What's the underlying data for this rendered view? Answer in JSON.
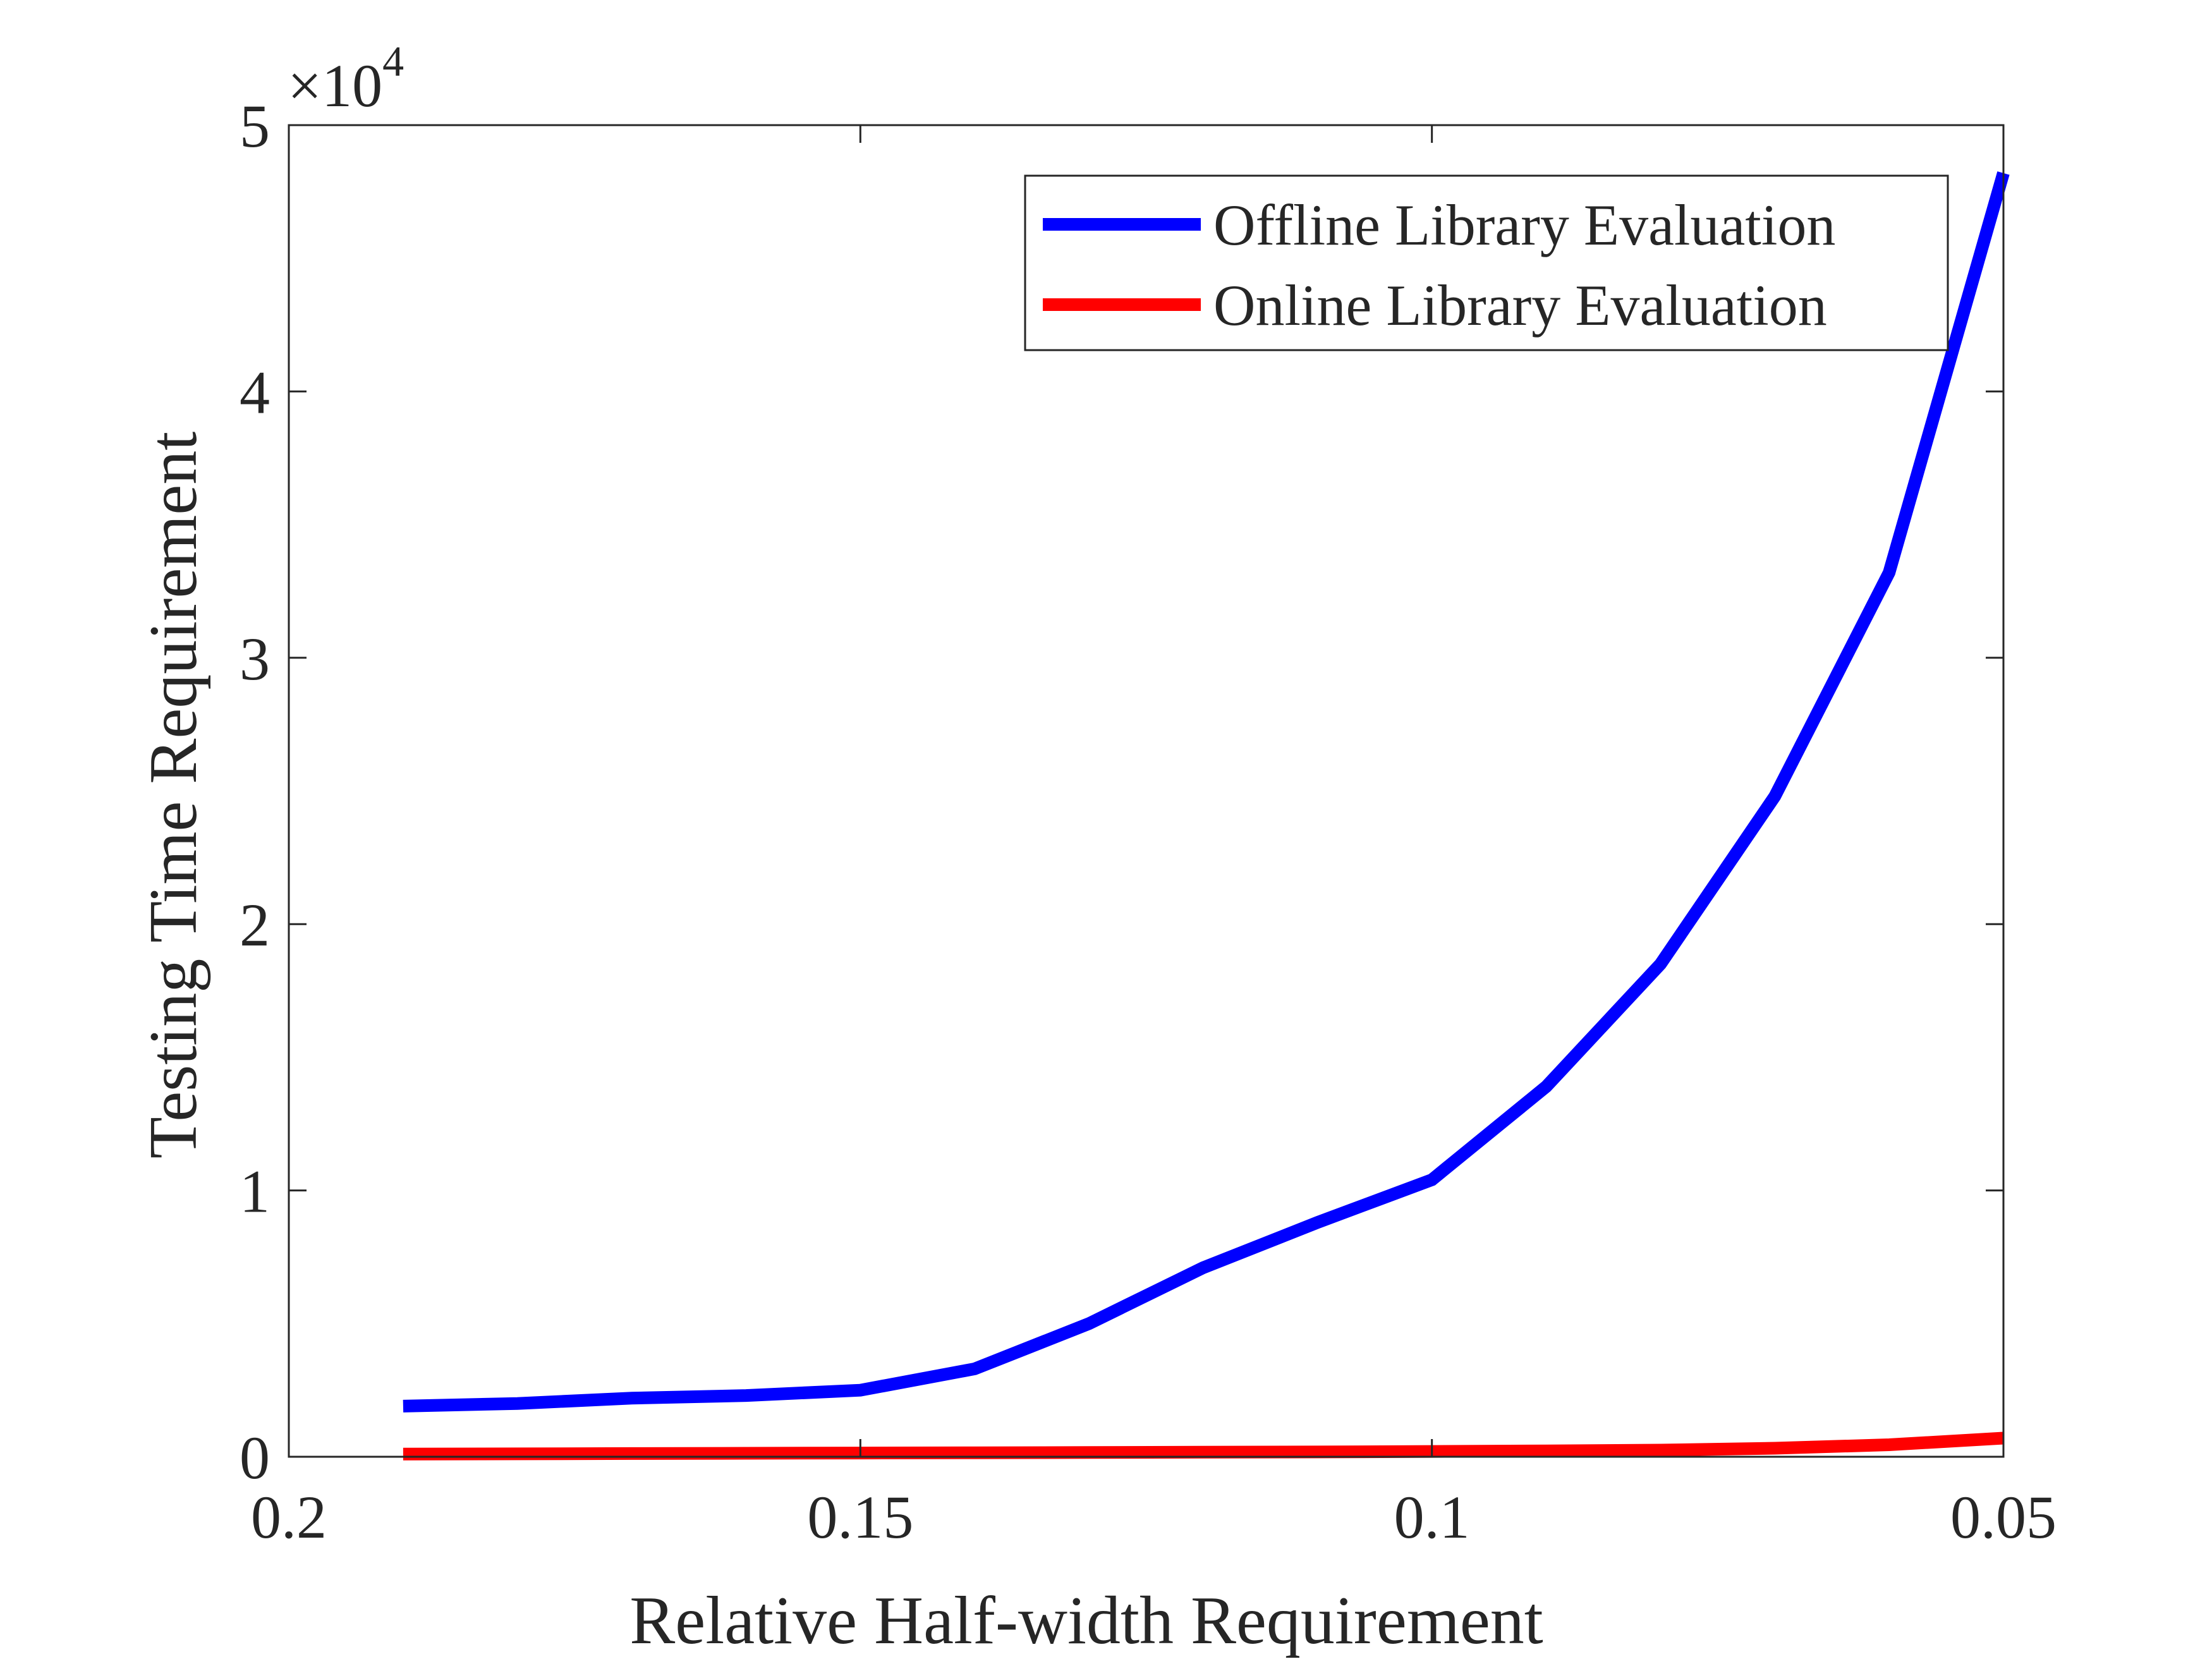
{
  "chart_data": {
    "type": "line",
    "title": "",
    "xlabel": "Relative Half-width Requirement",
    "ylabel": "Testing Time Requirement",
    "x_axis": {
      "reversed": true,
      "xlim": [
        0.2,
        0.05
      ],
      "ticks": [
        0.2,
        0.15,
        0.1,
        0.05
      ],
      "tick_labels": [
        "0.2",
        "0.15",
        "0.1",
        "0.05"
      ]
    },
    "y_axis": {
      "ylim": [
        0,
        50000
      ],
      "ticks": [
        0,
        10000,
        20000,
        30000,
        40000,
        50000
      ],
      "tick_labels": [
        "0",
        "1",
        "2",
        "3",
        "4",
        "5"
      ],
      "exponent_label": "×10",
      "exponent": "4"
    },
    "grid": false,
    "box": true,
    "legend": {
      "placement": "top-right",
      "entries": [
        "Offline Library Evaluation",
        "Online Library Evaluation"
      ]
    },
    "x": [
      0.19,
      0.18,
      0.17,
      0.16,
      0.15,
      0.14,
      0.13,
      0.12,
      0.11,
      0.1,
      0.09,
      0.08,
      0.07,
      0.06,
      0.05
    ],
    "series": [
      {
        "name": "Offline Library Evaluation",
        "color": "#0000ff",
        "values": [
          1900,
          2000,
          2200,
          2300,
          2500,
          3300,
          5000,
          7100,
          8800,
          10400,
          13900,
          18500,
          24800,
          33200,
          48200
        ]
      },
      {
        "name": "Online Library Evaluation",
        "color": "#ff0000",
        "values": [
          100,
          110,
          120,
          130,
          140,
          150,
          160,
          170,
          180,
          200,
          220,
          250,
          320,
          450,
          700
        ]
      }
    ]
  }
}
